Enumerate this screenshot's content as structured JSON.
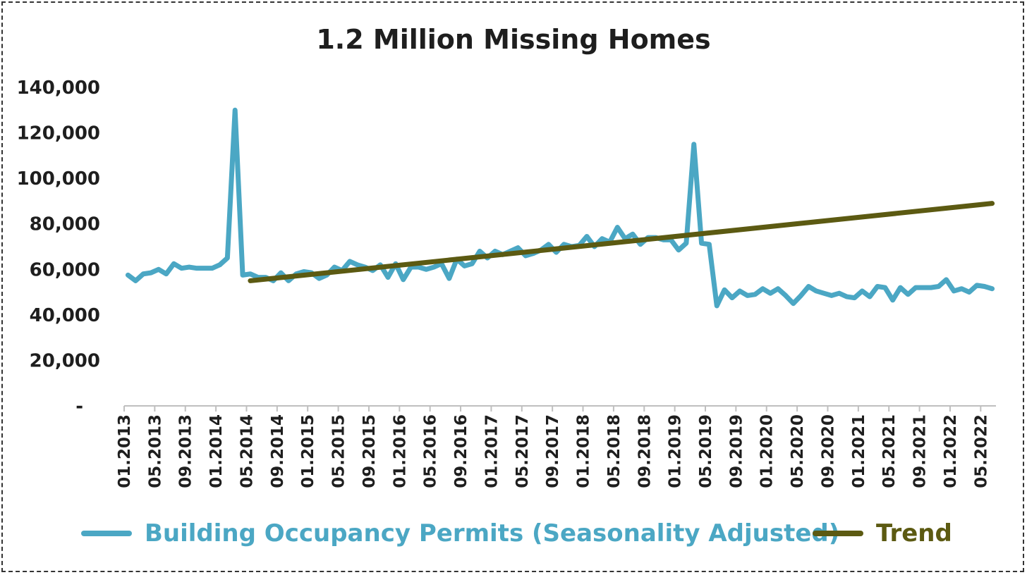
{
  "chart_data": {
    "type": "line",
    "title": "1.2 Million Missing Homes",
    "xlabel": "",
    "ylabel": "",
    "ylim": [
      0,
      140000
    ],
    "y_ticks": [
      "-",
      "20,000",
      "40,000",
      "60,000",
      "80,000",
      "100,000",
      "120,000",
      "140,000"
    ],
    "x_tick_labels": [
      "01.2013",
      "05.2013",
      "09.2013",
      "01.2014",
      "05.2014",
      "09.2014",
      "01.2015",
      "05.2015",
      "09.2015",
      "01.2016",
      "05.2016",
      "09.2016",
      "01.2017",
      "05.2017",
      "09.2017",
      "01.2018",
      "05.2018",
      "09.2018",
      "01.2019",
      "05.2019",
      "09.2019",
      "01.2020",
      "05.2020",
      "09.2020",
      "01.2021",
      "05.2021",
      "09.2021",
      "01.2022",
      "05.2022"
    ],
    "x_start": "01.2013",
    "x_end": "07.2022",
    "legend_position": "bottom",
    "grid": false,
    "series": [
      {
        "name": "Building Occupancy Permits (Seasonality Adjusted)",
        "color": "#4ba7c4",
        "values": [
          57500,
          55000,
          58000,
          58500,
          60000,
          58000,
          62500,
          60500,
          61000,
          60500,
          60500,
          60500,
          62000,
          65000,
          130000,
          57500,
          58000,
          56500,
          56500,
          55000,
          58500,
          55000,
          58000,
          59000,
          58500,
          56000,
          57500,
          61000,
          59500,
          63500,
          62000,
          61000,
          59500,
          62000,
          56500,
          62500,
          55500,
          61000,
          61000,
          60000,
          61000,
          62500,
          56000,
          64500,
          61500,
          62500,
          68000,
          65000,
          68000,
          66500,
          68000,
          69500,
          66000,
          67000,
          68500,
          71000,
          67500,
          71000,
          70000,
          70500,
          74500,
          70000,
          73500,
          72000,
          78500,
          73500,
          75500,
          71000,
          74000,
          74000,
          73000,
          73000,
          68500,
          71500,
          115000,
          71500,
          71000,
          44000,
          51000,
          47500,
          50500,
          48500,
          49000,
          51500,
          49500,
          51500,
          48500,
          45000,
          48500,
          52500,
          50500,
          49500,
          48500,
          49500,
          48000,
          47500,
          50500,
          48000,
          52500,
          52000,
          46500,
          52000,
          49000,
          52000,
          52000,
          52000,
          52500,
          55500,
          50500,
          51500,
          50000,
          53000,
          52500,
          51500
        ]
      },
      {
        "name": "Trend",
        "color": "#5c5a12",
        "start_index": 16,
        "values_start": 55000,
        "values_end": 89000
      }
    ]
  }
}
